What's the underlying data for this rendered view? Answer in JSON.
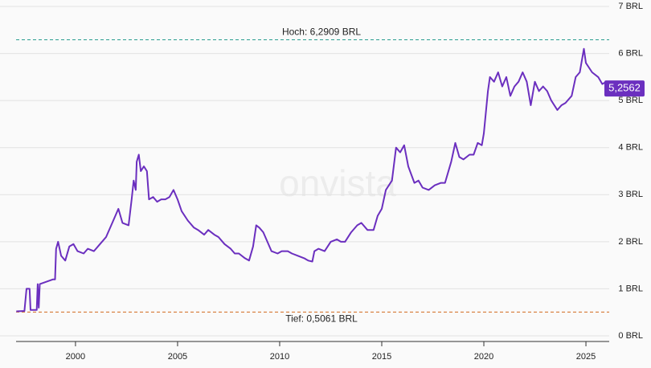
{
  "chart_data": {
    "type": "line",
    "watermark": "onvista",
    "x": [
      1997.1,
      1997.5,
      1997.6,
      1997.75,
      1997.8,
      1998.1,
      1998.15,
      1998.2,
      1998.25,
      1998.9,
      1999.0,
      1999.05,
      1999.15,
      1999.3,
      1999.5,
      1999.7,
      1999.9,
      2000.1,
      2000.4,
      2000.6,
      2000.9,
      2001.2,
      2001.5,
      2001.8,
      2002.1,
      2002.3,
      2002.6,
      2002.75,
      2002.85,
      2002.95,
      2003.0,
      2003.1,
      2003.2,
      2003.35,
      2003.5,
      2003.6,
      2003.8,
      2004.0,
      2004.2,
      2004.4,
      2004.6,
      2004.8,
      2005.0,
      2005.2,
      2005.5,
      2005.8,
      2006.0,
      2006.3,
      2006.5,
      2006.8,
      2007.0,
      2007.3,
      2007.6,
      2007.8,
      2008.0,
      2008.3,
      2008.5,
      2008.7,
      2008.85,
      2009.0,
      2009.2,
      2009.4,
      2009.6,
      2009.9,
      2010.1,
      2010.4,
      2010.6,
      2010.9,
      2011.2,
      2011.4,
      2011.6,
      2011.7,
      2011.9,
      2012.2,
      2012.5,
      2012.8,
      2013.0,
      2013.2,
      2013.5,
      2013.8,
      2014.0,
      2014.3,
      2014.6,
      2014.8,
      2015.0,
      2015.2,
      2015.5,
      2015.7,
      2015.9,
      2016.1,
      2016.3,
      2016.6,
      2016.8,
      2017.0,
      2017.3,
      2017.6,
      2017.9,
      2018.1,
      2018.4,
      2018.6,
      2018.8,
      2019.0,
      2019.3,
      2019.5,
      2019.7,
      2019.9,
      2020.0,
      2020.2,
      2020.3,
      2020.5,
      2020.7,
      2020.9,
      2021.1,
      2021.3,
      2021.5,
      2021.7,
      2021.9,
      2022.1,
      2022.3,
      2022.5,
      2022.7,
      2022.9,
      2023.1,
      2023.3,
      2023.6,
      2023.8,
      2024.0,
      2024.3,
      2024.5,
      2024.7,
      2024.9,
      2025.0,
      2025.3,
      2025.6,
      2025.8,
      2026.0,
      2026.1
    ],
    "series": [
      {
        "name": "BRL",
        "color": "#6b2fbf",
        "values": [
          0.52,
          0.53,
          1.0,
          1.0,
          0.55,
          0.55,
          1.1,
          0.6,
          1.1,
          1.2,
          1.2,
          1.85,
          2.0,
          1.7,
          1.6,
          1.9,
          1.95,
          1.8,
          1.75,
          1.85,
          1.8,
          1.95,
          2.1,
          2.4,
          2.7,
          2.4,
          2.35,
          2.9,
          3.3,
          3.1,
          3.7,
          3.85,
          3.5,
          3.6,
          3.5,
          2.9,
          2.95,
          2.85,
          2.9,
          2.9,
          2.95,
          3.1,
          2.9,
          2.65,
          2.45,
          2.3,
          2.25,
          2.15,
          2.25,
          2.15,
          2.1,
          1.95,
          1.85,
          1.75,
          1.75,
          1.65,
          1.6,
          1.9,
          2.35,
          2.3,
          2.2,
          2.0,
          1.8,
          1.75,
          1.8,
          1.8,
          1.75,
          1.7,
          1.65,
          1.6,
          1.58,
          1.8,
          1.85,
          1.8,
          2.0,
          2.05,
          2.0,
          2.0,
          2.2,
          2.35,
          2.4,
          2.25,
          2.25,
          2.55,
          2.7,
          3.1,
          3.3,
          4.0,
          3.9,
          4.05,
          3.6,
          3.25,
          3.3,
          3.15,
          3.1,
          3.2,
          3.25,
          3.25,
          3.7,
          4.1,
          3.8,
          3.75,
          3.85,
          3.85,
          4.1,
          4.05,
          4.3,
          5.2,
          5.5,
          5.4,
          5.6,
          5.3,
          5.5,
          5.1,
          5.3,
          5.4,
          5.6,
          5.4,
          4.9,
          5.4,
          5.2,
          5.3,
          5.2,
          5.0,
          4.8,
          4.9,
          4.95,
          5.1,
          5.5,
          5.6,
          6.1,
          5.8,
          5.6,
          5.5,
          5.35,
          5.4,
          5.2562
        ]
      }
    ],
    "last_label": "5,2562",
    "annotations": [
      {
        "value": 6.2909,
        "label": "Hoch: 6,2909 BRL",
        "color": "#2a9d8f"
      },
      {
        "value": 0.5061,
        "label": "Tief: 0,5061 BRL",
        "color": "#d2691e"
      }
    ],
    "xlim": [
      1997.09,
      2026.14
    ],
    "xticks": [
      2000,
      2005,
      2010,
      2015,
      2020,
      2025
    ],
    "ylim": [
      0,
      7
    ],
    "yticks": [
      {
        "value": 0,
        "label": "0 BRL"
      },
      {
        "value": 1,
        "label": "1 BRL"
      },
      {
        "value": 2,
        "label": "2 BRL"
      },
      {
        "value": 3,
        "label": "3 BRL"
      },
      {
        "value": 4,
        "label": "4 BRL"
      },
      {
        "value": 5,
        "label": "5 BRL"
      },
      {
        "value": 6,
        "label": "6 BRL"
      },
      {
        "value": 7,
        "label": "7 BRL"
      }
    ],
    "grid": true
  }
}
